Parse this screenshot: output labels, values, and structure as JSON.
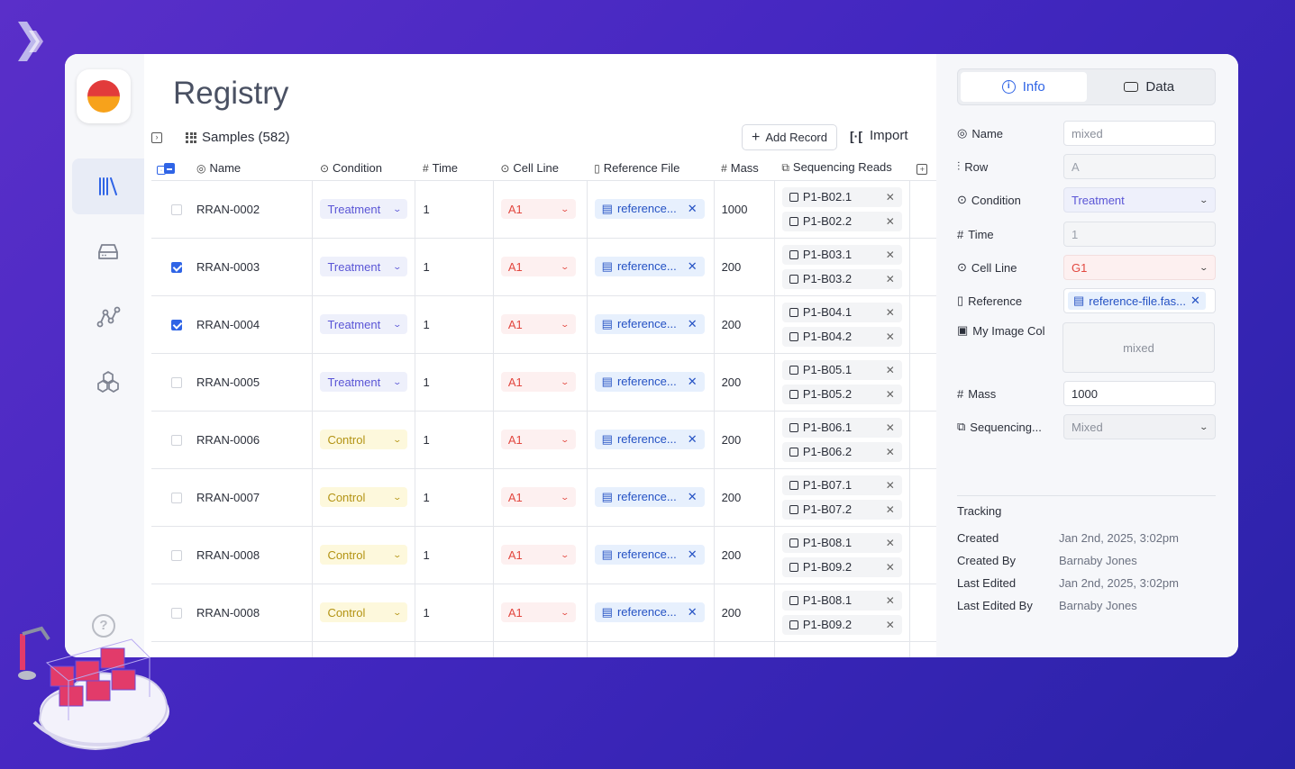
{
  "page": {
    "title": "Registry"
  },
  "toolbar": {
    "samples_label": "Samples (582)",
    "add_record": "Add Record",
    "import": "Import"
  },
  "columns": {
    "name": "Name",
    "condition": "Condition",
    "time": "Time",
    "cell_line": "Cell Line",
    "reference_file": "Reference File",
    "mass": "Mass",
    "sequencing_reads": "Sequencing Reads"
  },
  "rows": [
    {
      "name": "RRAN-0002",
      "checked": false,
      "condition": "Treatment",
      "time": "1",
      "cell_line": "A1",
      "reference": "reference...",
      "mass": "1000",
      "reads": [
        "P1-B02.1",
        "P1-B02.2"
      ]
    },
    {
      "name": "RRAN-0003",
      "checked": true,
      "condition": "Treatment",
      "time": "1",
      "cell_line": "A1",
      "reference": "reference...",
      "mass": "200",
      "reads": [
        "P1-B03.1",
        "P1-B03.2"
      ]
    },
    {
      "name": "RRAN-0004",
      "checked": true,
      "condition": "Treatment",
      "time": "1",
      "cell_line": "A1",
      "reference": "reference...",
      "mass": "200",
      "reads": [
        "P1-B04.1",
        "P1-B04.2"
      ]
    },
    {
      "name": "RRAN-0005",
      "checked": false,
      "condition": "Treatment",
      "time": "1",
      "cell_line": "A1",
      "reference": "reference...",
      "mass": "200",
      "reads": [
        "P1-B05.1",
        "P1-B05.2"
      ]
    },
    {
      "name": "RRAN-0006",
      "checked": false,
      "condition": "Control",
      "time": "1",
      "cell_line": "A1",
      "reference": "reference...",
      "mass": "200",
      "reads": [
        "P1-B06.1",
        "P1-B06.2"
      ]
    },
    {
      "name": "RRAN-0007",
      "checked": false,
      "condition": "Control",
      "time": "1",
      "cell_line": "A1",
      "reference": "reference...",
      "mass": "200",
      "reads": [
        "P1-B07.1",
        "P1-B07.2"
      ]
    },
    {
      "name": "RRAN-0008",
      "checked": false,
      "condition": "Control",
      "time": "1",
      "cell_line": "A1",
      "reference": "reference...",
      "mass": "200",
      "reads": [
        "P1-B08.1",
        "P1-B09.2"
      ]
    },
    {
      "name": "RRAN-0008",
      "checked": false,
      "condition": "Control",
      "time": "1",
      "cell_line": "A1",
      "reference": "reference...",
      "mass": "200",
      "reads": [
        "P1-B08.1",
        "P1-B09.2"
      ]
    }
  ],
  "panel": {
    "tabs": [
      "Info",
      "Data"
    ],
    "fields": {
      "name_label": "Name",
      "name_value": "mixed",
      "row_label": "Row",
      "row_value": "A",
      "condition_label": "Condition",
      "condition_value": "Treatment",
      "time_label": "Time",
      "time_value": "1",
      "cell_line_label": "Cell Line",
      "cell_line_value": "G1",
      "reference_label": "Reference",
      "reference_value": "reference-file.fas...",
      "image_label": "My Image Col",
      "image_value": "mixed",
      "mass_label": "Mass",
      "mass_value": "1000",
      "seq_label": "Sequencing...",
      "seq_value": "Mixed"
    },
    "tracking": {
      "heading": "Tracking",
      "items": [
        {
          "k": "Created",
          "v": "Jan 2nd, 2025, 3:02pm"
        },
        {
          "k": "Created By",
          "v": "Barnaby Jones"
        },
        {
          "k": "Last Edited",
          "v": "Jan 2nd, 2025, 3:02pm"
        },
        {
          "k": "Last Edited By",
          "v": "Barnaby Jones"
        }
      ]
    }
  },
  "colors": {
    "accent": "#2f64e6",
    "treatment": "#5a55d6",
    "control": "#b39313",
    "cell_line": "#e2473f",
    "reference": "#2552c4"
  }
}
